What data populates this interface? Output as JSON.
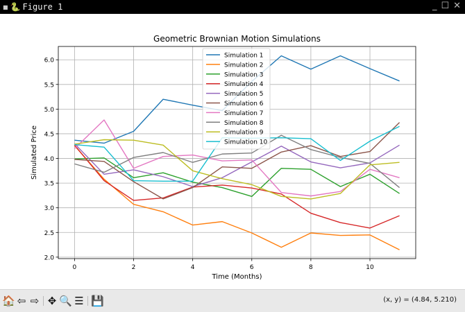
{
  "window": {
    "title": "Figure 1",
    "minimize_icon": "minimize-icon",
    "maximize_icon": "maximize-icon"
  },
  "toolbar": {
    "icons": [
      "home-icon",
      "back-icon",
      "forward-icon",
      "pan-icon",
      "zoom-icon",
      "configure-icon",
      "save-icon"
    ],
    "coords": "(x, y) = (4.84, 5.210)"
  },
  "chart_data": {
    "type": "line",
    "title": "Geometric Brownian Motion Simulations",
    "xlabel": "Time (Months)",
    "ylabel": "Simulated Price",
    "xlim": [
      -0.55,
      11.55
    ],
    "ylim": [
      1.97,
      6.27
    ],
    "xticks": [
      0,
      2,
      4,
      6,
      8,
      10
    ],
    "yticks": [
      2.0,
      2.5,
      3.0,
      3.5,
      4.0,
      4.5,
      5.0,
      5.5,
      6.0
    ],
    "grid": true,
    "legend_position": "upper-center",
    "x": [
      0,
      1,
      2,
      3,
      4,
      5,
      6,
      7,
      8,
      9,
      10,
      11
    ],
    "series": [
      {
        "name": "Simulation 1",
        "color": "#1f77b4",
        "values": [
          4.37,
          4.31,
          4.55,
          5.2,
          5.08,
          4.97,
          5.56,
          6.08,
          5.81,
          6.08,
          5.82,
          5.57
        ]
      },
      {
        "name": "Simulation 2",
        "color": "#ff7f0e",
        "values": [
          4.26,
          3.58,
          3.07,
          2.92,
          2.65,
          2.72,
          2.49,
          2.2,
          2.49,
          2.44,
          2.45,
          2.15
        ]
      },
      {
        "name": "Simulation 3",
        "color": "#2ca02c",
        "values": [
          3.99,
          4.01,
          3.61,
          3.71,
          3.52,
          3.41,
          3.23,
          3.8,
          3.78,
          3.43,
          3.68,
          3.29
        ]
      },
      {
        "name": "Simulation 4",
        "color": "#d62728",
        "values": [
          4.27,
          3.55,
          3.15,
          3.2,
          3.42,
          3.46,
          3.4,
          3.28,
          2.89,
          2.7,
          2.59,
          2.84
        ]
      },
      {
        "name": "Simulation 5",
        "color": "#9467bd",
        "values": [
          4.3,
          3.68,
          3.77,
          3.63,
          3.43,
          3.61,
          3.93,
          4.25,
          3.93,
          3.81,
          3.91,
          4.27
        ]
      },
      {
        "name": "Simulation 6",
        "color": "#8c564b",
        "values": [
          3.98,
          3.94,
          3.53,
          3.18,
          3.41,
          3.83,
          3.8,
          4.13,
          4.26,
          4.04,
          4.14,
          4.73
        ]
      },
      {
        "name": "Simulation 7",
        "color": "#e377c2",
        "values": [
          4.2,
          4.78,
          3.8,
          4.04,
          4.07,
          3.95,
          3.97,
          3.31,
          3.24,
          3.33,
          3.78,
          3.61
        ]
      },
      {
        "name": "Simulation 8",
        "color": "#7f7f7f",
        "values": [
          3.89,
          3.72,
          4.02,
          4.12,
          3.92,
          4.09,
          4.11,
          4.47,
          4.18,
          4.02,
          3.9,
          3.41
        ]
      },
      {
        "name": "Simulation 9",
        "color": "#bcbd22",
        "values": [
          4.29,
          4.38,
          4.37,
          4.27,
          3.75,
          3.59,
          3.47,
          3.23,
          3.18,
          3.29,
          3.87,
          3.92
        ]
      },
      {
        "name": "Simulation 10",
        "color": "#17becf",
        "values": [
          4.28,
          4.23,
          3.55,
          3.54,
          3.54,
          4.42,
          4.41,
          4.42,
          4.4,
          3.96,
          4.35,
          4.65
        ]
      }
    ]
  }
}
